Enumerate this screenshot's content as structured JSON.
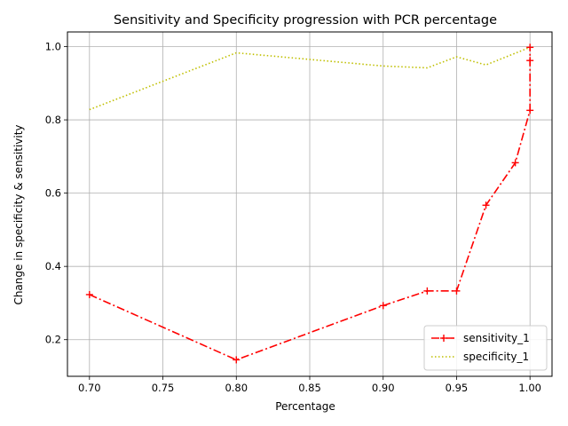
{
  "chart_data": {
    "type": "line",
    "title": "Sensitivity and Specificity progression with PCR percentage",
    "xlabel": "Percentage",
    "ylabel": "Change in specificity & sensitivity",
    "xlim": [
      0.685,
      1.015
    ],
    "ylim": [
      0.1,
      1.04
    ],
    "xticks": [
      0.7,
      0.75,
      0.8,
      0.85,
      0.9,
      0.95,
      1.0
    ],
    "xtick_labels": [
      "0.70",
      "0.75",
      "0.80",
      "0.85",
      "0.90",
      "0.95",
      "1.00"
    ],
    "yticks": [
      0.2,
      0.4,
      0.6,
      0.8,
      1.0
    ],
    "ytick_labels": [
      "0.2",
      "0.4",
      "0.6",
      "0.8",
      "1.0"
    ],
    "grid": true,
    "legend_position": "lower-right",
    "series": [
      {
        "name": "sensitivity_1",
        "color": "#ff0000",
        "linestyle": "dashdot",
        "marker": "plus",
        "x": [
          0.7,
          0.8,
          0.9,
          0.93,
          0.95,
          0.97,
          0.99,
          1.0,
          1.0,
          1.0
        ],
        "y": [
          0.323,
          0.145,
          0.293,
          0.333,
          0.333,
          0.567,
          0.683,
          0.826,
          0.962,
          0.998
        ]
      },
      {
        "name": "specificity_1",
        "color": "#bfbf00",
        "linestyle": "dotted",
        "marker": "none",
        "x": [
          0.7,
          0.8,
          0.9,
          0.93,
          0.95,
          0.97,
          1.0
        ],
        "y": [
          0.828,
          0.983,
          0.947,
          0.942,
          0.972,
          0.95,
          0.998
        ]
      }
    ]
  }
}
